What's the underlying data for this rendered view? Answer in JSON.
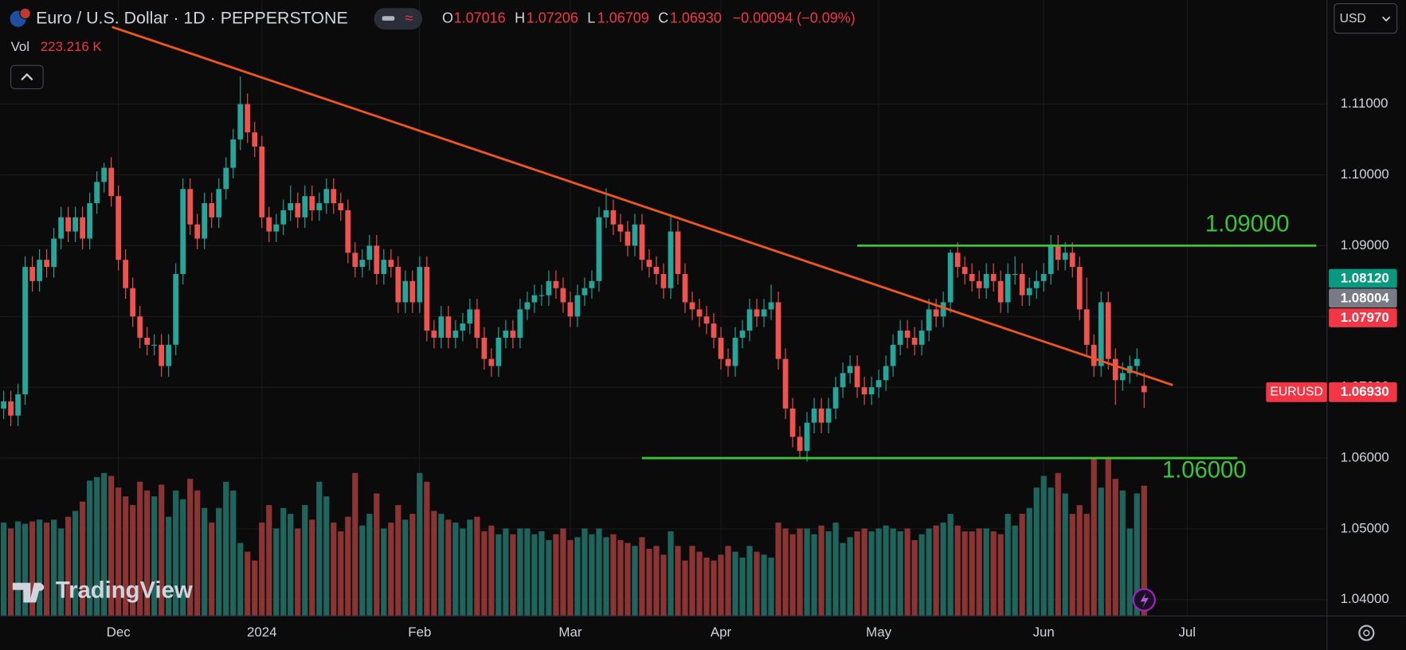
{
  "header": {
    "symbol": "Euro / U.S. Dollar · 1D · PEPPERSTONE",
    "ohlc_labels": [
      "O",
      "H",
      "L",
      "C"
    ],
    "ohlc": [
      "1.07016",
      "1.07206",
      "1.06709",
      "1.06930"
    ],
    "change": "−0.00094 (−0.09%)",
    "volume_label": "Vol",
    "volume": "223.216 K",
    "currency": "USD",
    "branding": "TradingView"
  },
  "chart_data": {
    "type": "candlestick",
    "candles": [
      [
        1.067,
        1.0695,
        1.0655,
        1.068
      ],
      [
        1.068,
        1.0695,
        1.0645,
        1.066
      ],
      [
        1.066,
        1.0705,
        1.0645,
        1.069
      ],
      [
        1.069,
        1.0885,
        1.0675,
        1.087
      ],
      [
        1.087,
        1.0885,
        1.0835,
        1.085
      ],
      [
        1.085,
        1.0895,
        1.0835,
        1.088
      ],
      [
        1.088,
        1.0895,
        1.0855,
        1.087
      ],
      [
        1.087,
        1.0925,
        1.0855,
        1.091
      ],
      [
        1.091,
        1.0955,
        1.0895,
        1.094
      ],
      [
        1.094,
        1.0955,
        1.0905,
        1.092
      ],
      [
        1.092,
        1.0955,
        1.0905,
        1.094
      ],
      [
        1.094,
        1.0955,
        1.0895,
        1.091
      ],
      [
        1.091,
        1.0975,
        1.0895,
        1.096
      ],
      [
        1.096,
        1.1005,
        1.0945,
        1.099
      ],
      [
        1.099,
        1.1017,
        1.0975,
        1.101
      ],
      [
        1.101,
        1.1025,
        1.0955,
        1.097
      ],
      [
        1.097,
        1.0985,
        1.0865,
        1.088
      ],
      [
        1.088,
        1.0895,
        1.0825,
        1.084
      ],
      [
        1.084,
        1.0855,
        1.0785,
        1.08
      ],
      [
        1.08,
        1.0815,
        1.0755,
        1.077
      ],
      [
        1.077,
        1.0785,
        1.0745,
        1.076
      ],
      [
        1.076,
        1.0775,
        1.0745,
        1.076
      ],
      [
        1.076,
        1.0775,
        1.0715,
        1.073
      ],
      [
        1.073,
        1.0775,
        1.0715,
        1.076
      ],
      [
        1.076,
        1.0875,
        1.0745,
        1.086
      ],
      [
        1.086,
        1.0995,
        1.0845,
        1.098
      ],
      [
        1.098,
        1.0995,
        1.0915,
        1.093
      ],
      [
        1.093,
        1.0945,
        1.0895,
        1.091
      ],
      [
        1.091,
        1.0975,
        1.0895,
        1.096
      ],
      [
        1.096,
        1.0975,
        1.0925,
        1.094
      ],
      [
        1.094,
        1.0995,
        1.0925,
        1.098
      ],
      [
        1.098,
        1.1025,
        1.0965,
        1.101
      ],
      [
        1.101,
        1.1065,
        1.0995,
        1.105
      ],
      [
        1.105,
        1.1139,
        1.1035,
        1.11
      ],
      [
        1.11,
        1.1115,
        1.1045,
        1.106
      ],
      [
        1.106,
        1.1075,
        1.1025,
        1.104
      ],
      [
        1.104,
        1.1055,
        1.0925,
        1.094
      ],
      [
        1.094,
        1.0955,
        1.0905,
        1.092
      ],
      [
        1.092,
        1.0945,
        1.0905,
        1.093
      ],
      [
        1.093,
        1.0965,
        1.0915,
        1.095
      ],
      [
        1.095,
        1.0985,
        1.0935,
        1.096
      ],
      [
        1.096,
        1.0975,
        1.0925,
        1.094
      ],
      [
        1.094,
        1.0985,
        1.0925,
        1.097
      ],
      [
        1.097,
        1.0985,
        1.0935,
        1.095
      ],
      [
        1.095,
        1.0975,
        1.0935,
        1.096
      ],
      [
        1.096,
        1.0995,
        1.0945,
        1.098
      ],
      [
        1.098,
        1.0995,
        1.0945,
        1.096
      ],
      [
        1.096,
        1.0975,
        1.0935,
        1.095
      ],
      [
        1.095,
        1.0965,
        1.0875,
        1.089
      ],
      [
        1.089,
        1.0905,
        1.0855,
        1.087
      ],
      [
        1.087,
        1.0895,
        1.0855,
        1.088
      ],
      [
        1.088,
        1.0915,
        1.0865,
        1.09
      ],
      [
        1.09,
        1.0915,
        1.0845,
        1.086
      ],
      [
        1.086,
        1.0895,
        1.0845,
        1.088
      ],
      [
        1.088,
        1.0895,
        1.0855,
        1.087
      ],
      [
        1.087,
        1.0885,
        1.0805,
        1.082
      ],
      [
        1.082,
        1.0865,
        1.0805,
        1.085
      ],
      [
        1.085,
        1.0865,
        1.0805,
        1.082
      ],
      [
        1.082,
        1.0885,
        1.0805,
        1.087
      ],
      [
        1.087,
        1.0885,
        1.0765,
        1.078
      ],
      [
        1.078,
        1.0795,
        1.0755,
        1.077
      ],
      [
        1.077,
        1.0815,
        1.0755,
        1.08
      ],
      [
        1.08,
        1.0815,
        1.0755,
        1.077
      ],
      [
        1.077,
        1.0795,
        1.0755,
        1.078
      ],
      [
        1.078,
        1.0805,
        1.0765,
        1.079
      ],
      [
        1.079,
        1.0825,
        1.0775,
        1.081
      ],
      [
        1.081,
        1.0825,
        1.0755,
        1.077
      ],
      [
        1.077,
        1.0785,
        1.0725,
        1.074
      ],
      [
        1.074,
        1.0755,
        1.0715,
        1.073
      ],
      [
        1.073,
        1.0785,
        1.0715,
        1.077
      ],
      [
        1.077,
        1.0795,
        1.0755,
        1.078
      ],
      [
        1.078,
        1.0795,
        1.0755,
        1.077
      ],
      [
        1.077,
        1.0825,
        1.0755,
        1.081
      ],
      [
        1.081,
        1.0835,
        1.0795,
        1.082
      ],
      [
        1.082,
        1.0845,
        1.0805,
        1.083
      ],
      [
        1.083,
        1.0845,
        1.0815,
        1.083
      ],
      [
        1.083,
        1.0865,
        1.0815,
        1.085
      ],
      [
        1.085,
        1.0865,
        1.0825,
        1.084
      ],
      [
        1.084,
        1.0855,
        1.0805,
        1.082
      ],
      [
        1.082,
        1.0835,
        1.0785,
        1.08
      ],
      [
        1.08,
        1.0845,
        1.0785,
        1.083
      ],
      [
        1.083,
        1.0855,
        1.0815,
        1.084
      ],
      [
        1.084,
        1.0865,
        1.0825,
        1.085
      ],
      [
        1.085,
        1.0955,
        1.0835,
        1.094
      ],
      [
        1.094,
        1.0981,
        1.0925,
        1.095
      ],
      [
        1.095,
        1.0965,
        1.0915,
        1.093
      ],
      [
        1.093,
        1.0945,
        1.0905,
        1.092
      ],
      [
        1.092,
        1.0935,
        1.0885,
        1.09
      ],
      [
        1.09,
        1.0945,
        1.0885,
        1.093
      ],
      [
        1.093,
        1.0945,
        1.0865,
        1.088
      ],
      [
        1.088,
        1.0895,
        1.0855,
        1.087
      ],
      [
        1.087,
        1.0885,
        1.0845,
        1.086
      ],
      [
        1.086,
        1.0875,
        1.0825,
        1.084
      ],
      [
        1.084,
        1.0945,
        1.0825,
        1.092
      ],
      [
        1.092,
        1.0935,
        1.0845,
        1.086
      ],
      [
        1.086,
        1.0875,
        1.0805,
        1.082
      ],
      [
        1.082,
        1.0835,
        1.0795,
        1.081
      ],
      [
        1.081,
        1.0825,
        1.0785,
        1.08
      ],
      [
        1.08,
        1.0815,
        1.0775,
        1.079
      ],
      [
        1.079,
        1.0805,
        1.0755,
        1.077
      ],
      [
        1.077,
        1.0785,
        1.0725,
        1.074
      ],
      [
        1.074,
        1.0755,
        1.0715,
        1.073
      ],
      [
        1.073,
        1.0785,
        1.0715,
        1.077
      ],
      [
        1.077,
        1.0795,
        1.0755,
        1.078
      ],
      [
        1.078,
        1.0825,
        1.0765,
        1.081
      ],
      [
        1.081,
        1.0825,
        1.0785,
        1.08
      ],
      [
        1.08,
        1.0825,
        1.0785,
        1.081
      ],
      [
        1.081,
        1.0845,
        1.0795,
        1.082
      ],
      [
        1.082,
        1.0835,
        1.0725,
        1.074
      ],
      [
        1.074,
        1.0755,
        1.0655,
        1.067
      ],
      [
        1.067,
        1.0685,
        1.0615,
        1.063
      ],
      [
        1.063,
        1.0645,
        1.0601,
        1.061
      ],
      [
        1.061,
        1.0665,
        1.0595,
        1.065
      ],
      [
        1.065,
        1.0685,
        1.0635,
        1.067
      ],
      [
        1.067,
        1.0685,
        1.0635,
        1.065
      ],
      [
        1.065,
        1.0685,
        1.0635,
        1.067
      ],
      [
        1.067,
        1.0715,
        1.0655,
        1.07
      ],
      [
        1.07,
        1.0735,
        1.0685,
        1.072
      ],
      [
        1.072,
        1.0745,
        1.0705,
        1.073
      ],
      [
        1.073,
        1.0745,
        1.0685,
        1.07
      ],
      [
        1.07,
        1.0715,
        1.0675,
        1.069
      ],
      [
        1.069,
        1.0715,
        1.0675,
        1.07
      ],
      [
        1.07,
        1.0725,
        1.0685,
        1.071
      ],
      [
        1.071,
        1.0745,
        1.0695,
        1.073
      ],
      [
        1.073,
        1.0775,
        1.0715,
        1.076
      ],
      [
        1.076,
        1.0795,
        1.0745,
        1.078
      ],
      [
        1.078,
        1.0795,
        1.0755,
        1.077
      ],
      [
        1.077,
        1.0785,
        1.0745,
        1.076
      ],
      [
        1.076,
        1.0795,
        1.0745,
        1.078
      ],
      [
        1.078,
        1.0825,
        1.0765,
        1.081
      ],
      [
        1.081,
        1.0825,
        1.0785,
        1.08
      ],
      [
        1.08,
        1.0835,
        1.0785,
        1.082
      ],
      [
        1.082,
        1.0895,
        1.0805,
        1.089
      ],
      [
        1.089,
        1.0905,
        1.0855,
        1.087
      ],
      [
        1.087,
        1.0885,
        1.0845,
        1.086
      ],
      [
        1.086,
        1.0875,
        1.0835,
        1.085
      ],
      [
        1.085,
        1.0865,
        1.0825,
        1.084
      ],
      [
        1.084,
        1.0875,
        1.0825,
        1.086
      ],
      [
        1.086,
        1.0875,
        1.0835,
        1.085
      ],
      [
        1.085,
        1.0865,
        1.0805,
        1.082
      ],
      [
        1.082,
        1.0875,
        1.0805,
        1.086
      ],
      [
        1.086,
        1.0885,
        1.0845,
        1.086
      ],
      [
        1.086,
        1.0875,
        1.0815,
        1.083
      ],
      [
        1.083,
        1.0855,
        1.0815,
        1.084
      ],
      [
        1.084,
        1.0865,
        1.0825,
        1.085
      ],
      [
        1.085,
        1.0875,
        1.0835,
        1.086
      ],
      [
        1.086,
        1.0915,
        1.0845,
        1.09
      ],
      [
        1.09,
        1.0915,
        1.0865,
        1.088
      ],
      [
        1.088,
        1.0905,
        1.0865,
        1.089
      ],
      [
        1.089,
        1.0905,
        1.0855,
        1.087
      ],
      [
        1.087,
        1.0885,
        1.0795,
        1.081
      ],
      [
        1.081,
        1.0855,
        1.0745,
        1.076
      ],
      [
        1.076,
        1.0775,
        1.0715,
        1.073
      ],
      [
        1.073,
        1.0835,
        1.0715,
        1.082
      ],
      [
        1.082,
        1.0835,
        1.0725,
        1.074
      ],
      [
        1.074,
        1.0755,
        1.0675,
        1.071
      ],
      [
        1.071,
        1.0735,
        1.0695,
        1.072
      ],
      [
        1.072,
        1.0745,
        1.0705,
        1.073
      ],
      [
        1.073,
        1.0755,
        1.0715,
        1.074
      ],
      [
        1.0702,
        1.0721,
        1.0671,
        1.0693
      ]
    ],
    "volume": [
      160,
      150,
      162,
      158,
      162,
      165,
      160,
      165,
      150,
      170,
      180,
      196,
      232,
      238,
      245,
      240,
      220,
      205,
      190,
      230,
      215,
      205,
      225,
      170,
      215,
      200,
      235,
      215,
      185,
      160,
      185,
      230,
      215,
      125,
      110,
      95,
      160,
      190,
      150,
      185,
      175,
      150,
      190,
      165,
      230,
      205,
      160,
      145,
      170,
      245,
      155,
      175,
      210,
      150,
      160,
      190,
      165,
      175,
      245,
      230,
      180,
      175,
      165,
      160,
      150,
      165,
      170,
      145,
      155,
      140,
      150,
      140,
      150,
      150,
      140,
      145,
      130,
      140,
      150,
      130,
      135,
      150,
      140,
      150,
      135,
      140,
      130,
      125,
      120,
      135,
      115,
      120,
      105,
      145,
      120,
      95,
      120,
      110,
      100,
      95,
      105,
      120,
      110,
      100,
      120,
      110,
      105,
      100,
      160,
      150,
      140,
      150,
      150,
      140,
      155,
      145,
      160,
      125,
      135,
      145,
      150,
      145,
      150,
      155,
      150,
      145,
      150,
      130,
      140,
      150,
      155,
      160,
      175,
      155,
      145,
      145,
      150,
      150,
      145,
      140,
      175,
      155,
      175,
      185,
      220,
      240,
      220,
      245,
      210,
      175,
      190,
      175,
      270,
      220,
      270,
      235,
      215,
      150,
      210,
      223.216
    ],
    "xlim": [
      -0.5,
      184.5
    ],
    "ylim": [
      1.0377,
      1.1247
    ],
    "volume_lim": [
      0,
      272
    ],
    "xticks": [
      {
        "value": 16,
        "label": "Dec"
      },
      {
        "value": 36,
        "label": "2024"
      },
      {
        "value": 58,
        "label": "Feb"
      },
      {
        "value": 79,
        "label": "Mar"
      },
      {
        "value": 100,
        "label": "Apr"
      },
      {
        "value": 122,
        "label": "May"
      },
      {
        "value": 145,
        "label": "Jun"
      },
      {
        "value": 165,
        "label": "Jul"
      }
    ],
    "yticks": [
      {
        "value": 1.11,
        "label": "1.11000"
      },
      {
        "value": 1.1,
        "label": "1.10000"
      },
      {
        "value": 1.09,
        "label": "1.09000"
      },
      {
        "value": 1.08,
        "label": "1.08000"
      },
      {
        "value": 1.07,
        "label": "1.07000"
      },
      {
        "value": 1.06,
        "label": "1.06000"
      },
      {
        "value": 1.05,
        "label": "1.05000"
      },
      {
        "value": 1.04,
        "label": "1.04000"
      }
    ],
    "grid": true,
    "up_color": "#26a69a",
    "down_color": "#ef5350",
    "volume_up_color": "#1f655e",
    "volume_down_color": "#8a3434",
    "trendline": {
      "x": [
        15.1,
        163
      ],
      "y": [
        1.1209,
        1.0703
      ],
      "color": "#f0561d"
    },
    "levels": [
      {
        "value": 1.09,
        "label": "1.09000",
        "x": [
          119,
          183
        ],
        "color": "#3bc43b"
      },
      {
        "value": 1.06,
        "label": "1.06000",
        "x": [
          89,
          172
        ],
        "color": "#3bc43b"
      }
    ],
    "badges": [
      {
        "label": "1.08120",
        "color": "#089981"
      },
      {
        "label": "1.08004",
        "color": "#787b86"
      },
      {
        "label": "1.07970",
        "color": "#f23645"
      }
    ],
    "last_price": {
      "name": "EURUSD",
      "value": 1.0693,
      "label": "1.06930",
      "color": "#f23645"
    }
  }
}
